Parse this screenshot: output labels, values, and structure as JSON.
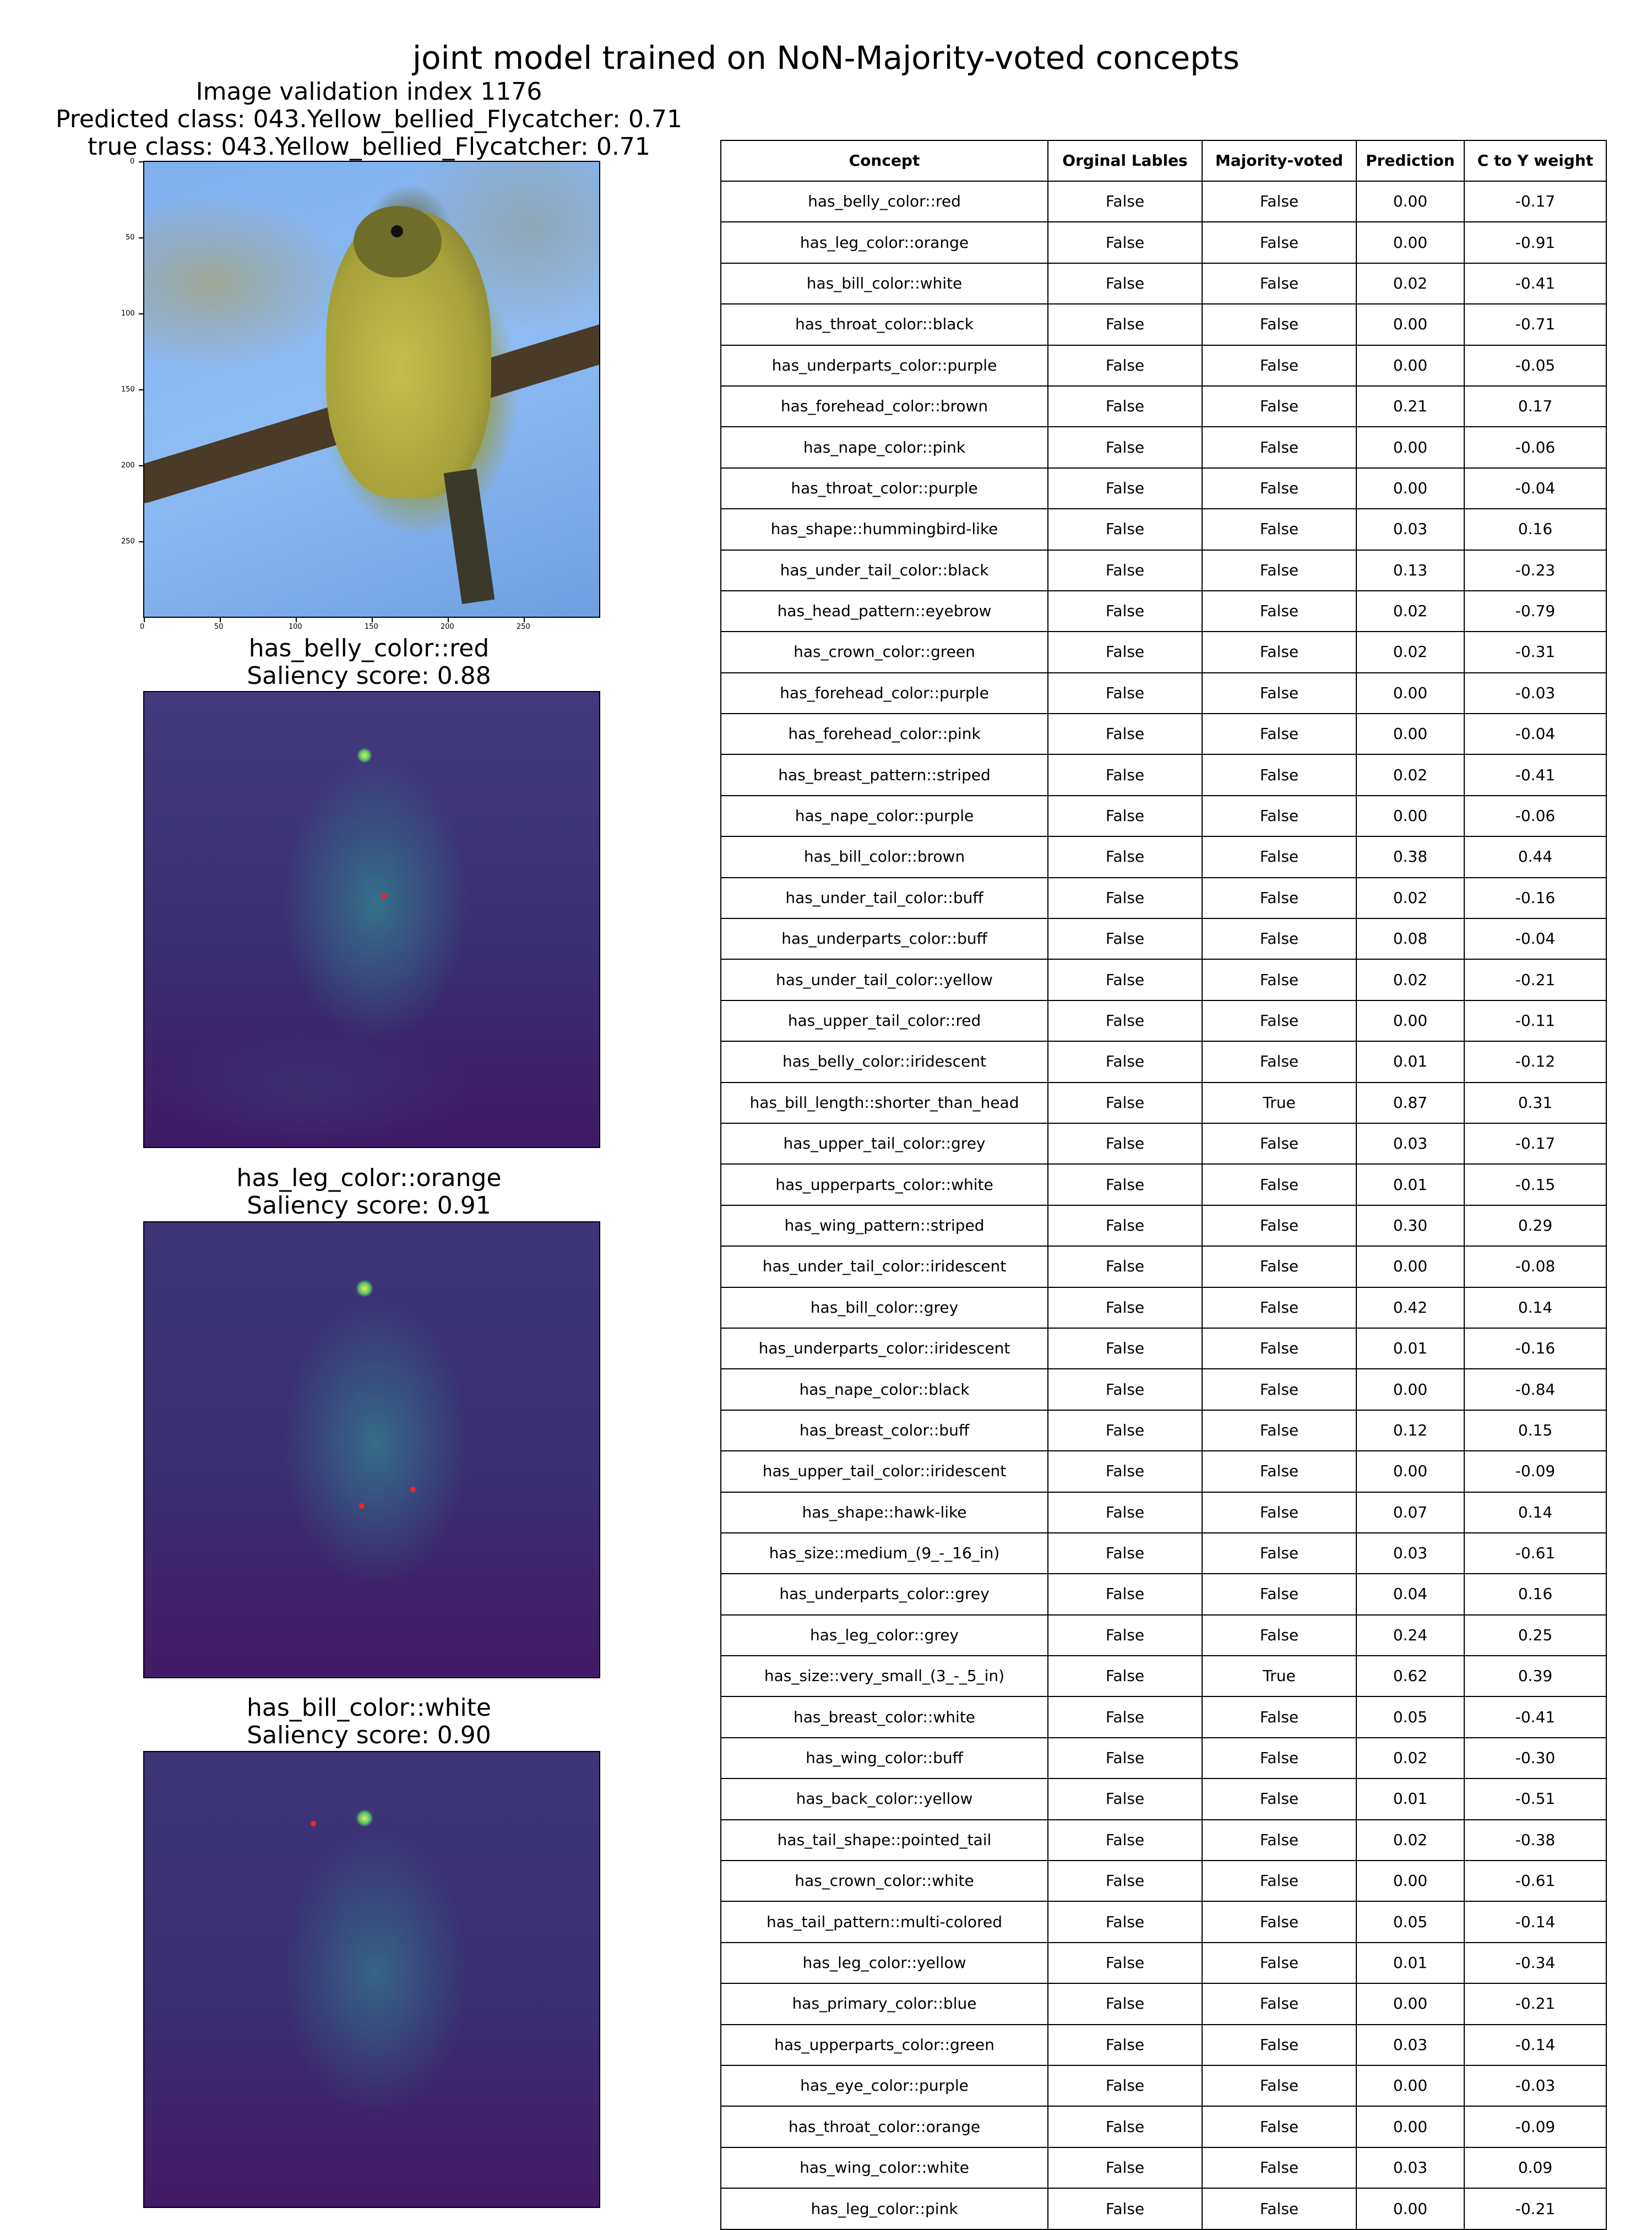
{
  "figure": {
    "title": "joint model trained on NoN-Majority-voted concepts"
  },
  "image": {
    "heading_lines": [
      "Image validation index 1176",
      "Predicted class: 043.Yellow_bellied_Flycatcher: 0.71",
      "true class: 043.Yellow_bellied_Flycatcher: 0.71"
    ],
    "x_ticks": [
      "0",
      "50",
      "100",
      "150",
      "200",
      "250"
    ],
    "y_ticks": [
      "0",
      "50",
      "100",
      "150",
      "200",
      "250"
    ]
  },
  "saliency_maps": [
    {
      "concept": "has_belly_color::red",
      "score_text": "Saliency score: 0.88"
    },
    {
      "concept": "has_leg_color::orange",
      "score_text": "Saliency score: 0.91"
    },
    {
      "concept": "has_bill_color::white",
      "score_text": "Saliency score: 0.90"
    }
  ],
  "table": {
    "headers": [
      "Concept",
      "Orginal Lables",
      "Majority-voted",
      "Prediction",
      "C to Y weight"
    ],
    "rows": [
      [
        "has_belly_color::red",
        "False",
        "False",
        "0.00",
        "-0.17"
      ],
      [
        "has_leg_color::orange",
        "False",
        "False",
        "0.00",
        "-0.91"
      ],
      [
        "has_bill_color::white",
        "False",
        "False",
        "0.02",
        "-0.41"
      ],
      [
        "has_throat_color::black",
        "False",
        "False",
        "0.00",
        "-0.71"
      ],
      [
        "has_underparts_color::purple",
        "False",
        "False",
        "0.00",
        "-0.05"
      ],
      [
        "has_forehead_color::brown",
        "False",
        "False",
        "0.21",
        "0.17"
      ],
      [
        "has_nape_color::pink",
        "False",
        "False",
        "0.00",
        "-0.06"
      ],
      [
        "has_throat_color::purple",
        "False",
        "False",
        "0.00",
        "-0.04"
      ],
      [
        "has_shape::hummingbird-like",
        "False",
        "False",
        "0.03",
        "0.16"
      ],
      [
        "has_under_tail_color::black",
        "False",
        "False",
        "0.13",
        "-0.23"
      ],
      [
        "has_head_pattern::eyebrow",
        "False",
        "False",
        "0.02",
        "-0.79"
      ],
      [
        "has_crown_color::green",
        "False",
        "False",
        "0.02",
        "-0.31"
      ],
      [
        "has_forehead_color::purple",
        "False",
        "False",
        "0.00",
        "-0.03"
      ],
      [
        "has_forehead_color::pink",
        "False",
        "False",
        "0.00",
        "-0.04"
      ],
      [
        "has_breast_pattern::striped",
        "False",
        "False",
        "0.02",
        "-0.41"
      ],
      [
        "has_nape_color::purple",
        "False",
        "False",
        "0.00",
        "-0.06"
      ],
      [
        "has_bill_color::brown",
        "False",
        "False",
        "0.38",
        "0.44"
      ],
      [
        "has_under_tail_color::buff",
        "False",
        "False",
        "0.02",
        "-0.16"
      ],
      [
        "has_underparts_color::buff",
        "False",
        "False",
        "0.08",
        "-0.04"
      ],
      [
        "has_under_tail_color::yellow",
        "False",
        "False",
        "0.02",
        "-0.21"
      ],
      [
        "has_upper_tail_color::red",
        "False",
        "False",
        "0.00",
        "-0.11"
      ],
      [
        "has_belly_color::iridescent",
        "False",
        "False",
        "0.01",
        "-0.12"
      ],
      [
        "has_bill_length::shorter_than_head",
        "False",
        "True",
        "0.87",
        "0.31"
      ],
      [
        "has_upper_tail_color::grey",
        "False",
        "False",
        "0.03",
        "-0.17"
      ],
      [
        "has_upperparts_color::white",
        "False",
        "False",
        "0.01",
        "-0.15"
      ],
      [
        "has_wing_pattern::striped",
        "False",
        "False",
        "0.30",
        "0.29"
      ],
      [
        "has_under_tail_color::iridescent",
        "False",
        "False",
        "0.00",
        "-0.08"
      ],
      [
        "has_bill_color::grey",
        "False",
        "False",
        "0.42",
        "0.14"
      ],
      [
        "has_underparts_color::iridescent",
        "False",
        "False",
        "0.01",
        "-0.16"
      ],
      [
        "has_nape_color::black",
        "False",
        "False",
        "0.00",
        "-0.84"
      ],
      [
        "has_breast_color::buff",
        "False",
        "False",
        "0.12",
        "0.15"
      ],
      [
        "has_upper_tail_color::iridescent",
        "False",
        "False",
        "0.00",
        "-0.09"
      ],
      [
        "has_shape::hawk-like",
        "False",
        "False",
        "0.07",
        "0.14"
      ],
      [
        "has_size::medium_(9_-_16_in)",
        "False",
        "False",
        "0.03",
        "-0.61"
      ],
      [
        "has_underparts_color::grey",
        "False",
        "False",
        "0.04",
        "0.16"
      ],
      [
        "has_leg_color::grey",
        "False",
        "False",
        "0.24",
        "0.25"
      ],
      [
        "has_size::very_small_(3_-_5_in)",
        "False",
        "True",
        "0.62",
        "0.39"
      ],
      [
        "has_breast_color::white",
        "False",
        "False",
        "0.05",
        "-0.41"
      ],
      [
        "has_wing_color::buff",
        "False",
        "False",
        "0.02",
        "-0.30"
      ],
      [
        "has_back_color::yellow",
        "False",
        "False",
        "0.01",
        "-0.51"
      ],
      [
        "has_tail_shape::pointed_tail",
        "False",
        "False",
        "0.02",
        "-0.38"
      ],
      [
        "has_crown_color::white",
        "False",
        "False",
        "0.00",
        "-0.61"
      ],
      [
        "has_tail_pattern::multi-colored",
        "False",
        "False",
        "0.05",
        "-0.14"
      ],
      [
        "has_leg_color::yellow",
        "False",
        "False",
        "0.01",
        "-0.34"
      ],
      [
        "has_primary_color::blue",
        "False",
        "False",
        "0.00",
        "-0.21"
      ],
      [
        "has_upperparts_color::green",
        "False",
        "False",
        "0.03",
        "-0.14"
      ],
      [
        "has_eye_color::purple",
        "False",
        "False",
        "0.00",
        "-0.03"
      ],
      [
        "has_throat_color::orange",
        "False",
        "False",
        "0.00",
        "-0.09"
      ],
      [
        "has_wing_color::white",
        "False",
        "False",
        "0.03",
        "0.09"
      ],
      [
        "has_leg_color::pink",
        "False",
        "False",
        "0.00",
        "-0.21"
      ]
    ]
  }
}
